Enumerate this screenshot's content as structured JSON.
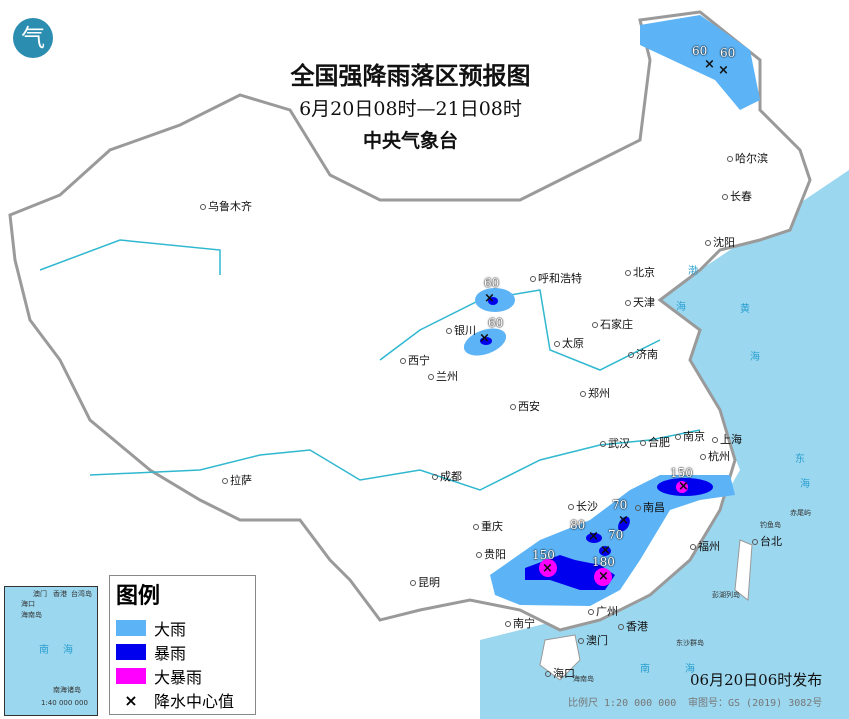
{
  "title": "全国强降雨落区预报图",
  "period": "6月20日08时—21日08时",
  "issuer": "中央气象台",
  "logo_text": "气",
  "legend": {
    "title": "图例",
    "items": [
      {
        "label": "大雨",
        "color": "#5cb4f6"
      },
      {
        "label": "暴雨",
        "color": "#0000ee"
      },
      {
        "label": "大暴雨",
        "color": "#ff00ff"
      },
      {
        "label": "降水中心值",
        "symbol": "×"
      }
    ]
  },
  "cities": [
    "乌鲁木齐",
    "拉萨",
    "西宁",
    "兰州",
    "银川",
    "呼和浩特",
    "北京",
    "天津",
    "石家庄",
    "太原",
    "济南",
    "郑州",
    "西安",
    "成都",
    "重庆",
    "贵阳",
    "昆明",
    "南宁",
    "广州",
    "澳门",
    "香港",
    "海口",
    "长沙",
    "武汉",
    "南昌",
    "合肥",
    "南京",
    "上海",
    "杭州",
    "福州",
    "台北",
    "哈尔滨",
    "长春",
    "沈阳"
  ],
  "seas": [
    "渤",
    "海",
    "黄",
    "海",
    "东",
    "海",
    "南",
    "海"
  ],
  "islands": [
    "钓鱼岛",
    "赤尾屿",
    "彭湖列岛",
    "东沙群岛",
    "海南岛"
  ],
  "rain_centers": [
    {
      "value": "60"
    },
    {
      "value": "60"
    },
    {
      "value": "60"
    },
    {
      "value": "60"
    },
    {
      "value": "150"
    },
    {
      "value": "70"
    },
    {
      "value": "80"
    },
    {
      "value": "70"
    },
    {
      "value": "150"
    },
    {
      "value": "180"
    }
  ],
  "inset": {
    "labels": [
      "澳门",
      "香港",
      "台湾岛",
      "海口",
      "海南岛",
      "南",
      "海",
      "南海诸岛"
    ],
    "scale": "1:40 000 000"
  },
  "published": "06月20日06时发布",
  "scale_text": "比例尺 1:20 000 000",
  "map_number": "审图号：GS (2019) 3082号",
  "colors": {
    "sea": "#9bd7ef",
    "land": "#ffffff",
    "border": "#9a9a9a",
    "heavy": "#5cb4f6",
    "storm": "#0000ee",
    "severe": "#ff00ff"
  }
}
